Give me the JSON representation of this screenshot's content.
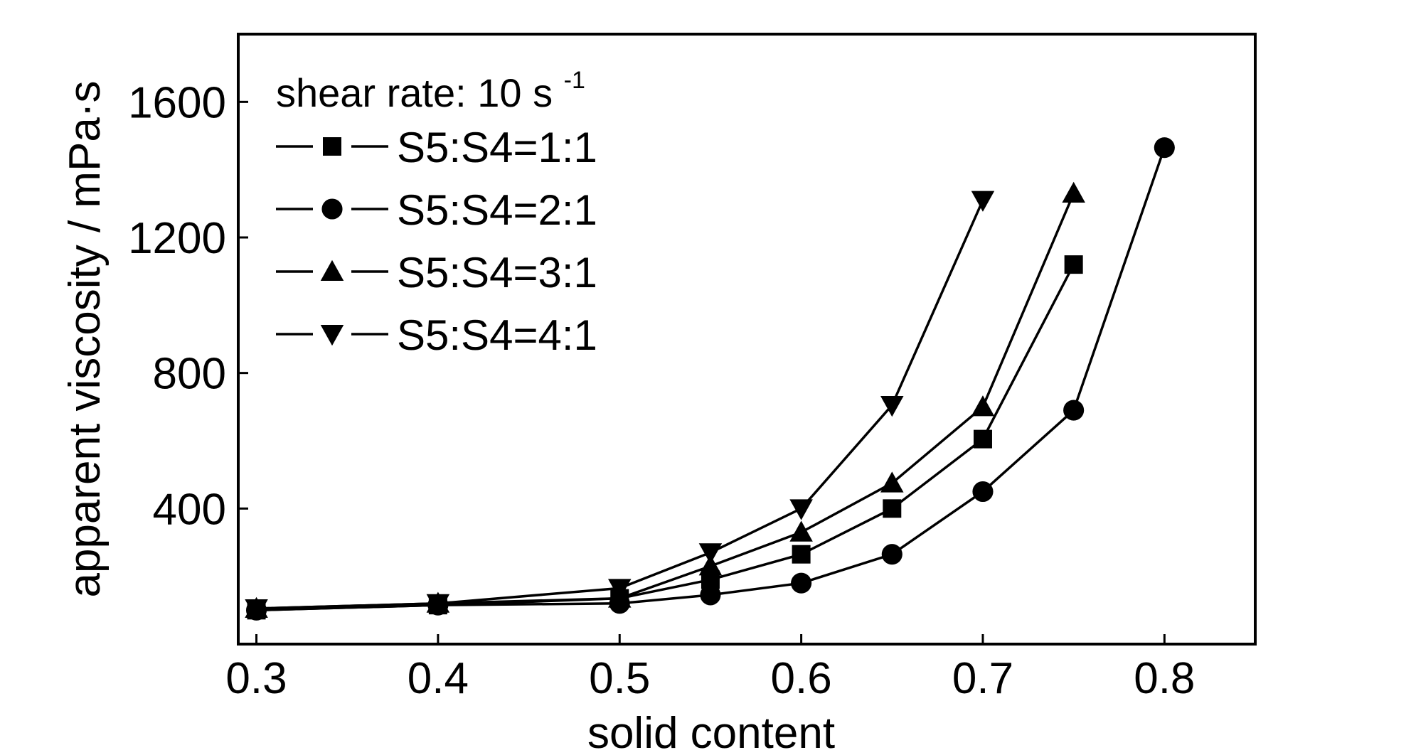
{
  "chart_data": {
    "type": "line",
    "title": "",
    "xlabel": "solid content",
    "ylabel": "apparent viscosity / mPa·s",
    "xlim": [
      0.29,
      0.85
    ],
    "ylim": [
      0,
      1800
    ],
    "xticks": [
      0.3,
      0.4,
      0.5,
      0.6,
      0.7,
      0.8
    ],
    "xtick_labels": [
      "0.3",
      "0.4",
      "0.5",
      "0.6",
      "0.7",
      "0.8"
    ],
    "yticks": [
      400,
      800,
      1200,
      1600
    ],
    "ytick_labels": [
      "400",
      "800",
      "1200",
      "1600"
    ],
    "grid": false,
    "legend": {
      "placement": "top-left",
      "title_main": "shear rate: 10 s",
      "title_sup": "-1"
    },
    "series": [
      {
        "name": "S5:S4=1:1",
        "marker": "square",
        "x": [
          0.3,
          0.4,
          0.5,
          0.55,
          0.6,
          0.65,
          0.7,
          0.75
        ],
        "y": [
          100,
          115,
          135,
          190,
          265,
          400,
          605,
          1120
        ]
      },
      {
        "name": "S5:S4=2:1",
        "marker": "circle",
        "x": [
          0.3,
          0.4,
          0.5,
          0.55,
          0.6,
          0.65,
          0.7,
          0.75,
          0.8
        ],
        "y": [
          100,
          115,
          120,
          145,
          180,
          265,
          450,
          690,
          1465
        ]
      },
      {
        "name": "S5:S4=3:1",
        "marker": "triangle-up",
        "x": [
          0.3,
          0.4,
          0.5,
          0.55,
          0.6,
          0.65,
          0.7,
          0.75
        ],
        "y": [
          105,
          120,
          135,
          230,
          330,
          475,
          700,
          1330
        ]
      },
      {
        "name": "S5:S4=4:1",
        "marker": "triangle-down",
        "x": [
          0.3,
          0.4,
          0.5,
          0.55,
          0.6,
          0.65,
          0.7
        ],
        "y": [
          105,
          120,
          165,
          270,
          400,
          705,
          1310
        ]
      }
    ],
    "colors": {
      "line": "#000000",
      "marker": "#000000",
      "background": "#ffffff"
    }
  }
}
